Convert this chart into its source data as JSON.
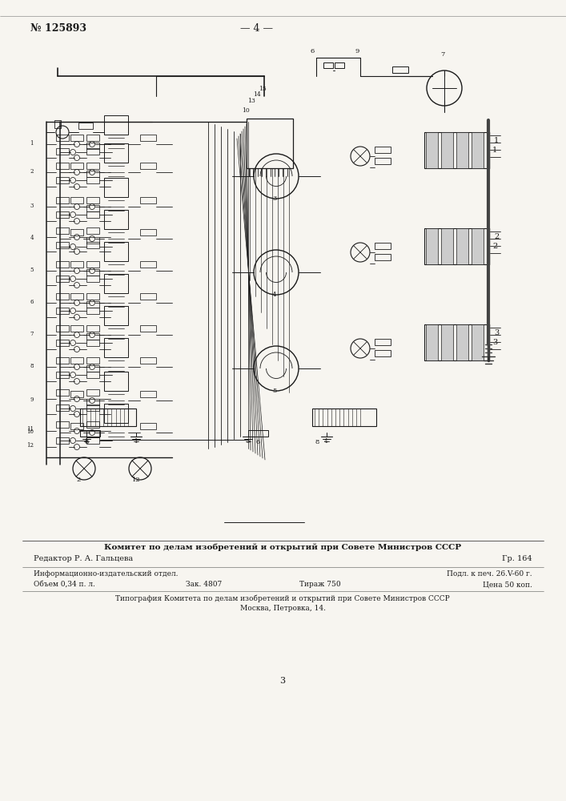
{
  "bg_color": "#f0ede8",
  "page_bg": "#f7f5f0",
  "lc": "#1a1a1a",
  "page_number_left": "№ 125893",
  "page_number_center": "— 4 —",
  "footer_line1": "Комитет по делам изобретений и открытий при Совете Министров СССР",
  "footer_line2_left": "Редактор Р. А. Гальцева",
  "footer_line2_right": "Гр. 164",
  "footer_line3_left": "Информационно-издательский отдел.",
  "footer_line3_right": "Подл. к печ. 26.V-60 г.",
  "footer_line4_left": "Объем 0,34 п. л.",
  "footer_line4_mid": "Зак. 4807",
  "footer_line4_mid2": "Тираж 750",
  "footer_line4_right": "Цена 50 коп.",
  "footer_line5": "Типография Комитета по делам изобретений и открытий при Совете Министров СССР",
  "footer_line6": "Москва, Петровка, 14.",
  "bottom_number": "3"
}
